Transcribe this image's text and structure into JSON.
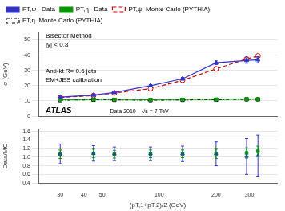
{
  "chart_data": [
    {
      "type": "line",
      "x": [
        30,
        45,
        58,
        90,
        133,
        200,
        290,
        333
      ],
      "log": "x",
      "xlim": [
        23,
        420
      ],
      "ylim": [
        0,
        55
      ],
      "yticks": [
        0,
        10,
        20,
        30,
        40,
        50
      ],
      "ylabel": "σ (GeV)",
      "grid": "y",
      "legend": "upper left",
      "tick_labels": "y",
      "annotations": [
        "Bisector Method",
        "|y| < 0.8",
        "Anti-kt R= 0.6 jets",
        "EM+JES calibration",
        "ATLAS",
        "Data 2010    √s = 7 TeV"
      ],
      "series": [
        {
          "name": "PT,ψ   Data",
          "color": "#3333cc",
          "marker": "triangle",
          "line_style": "solid",
          "values": [
            12.5,
            13.8,
            15.5,
            20.0,
            24.5,
            35.0,
            36.5,
            37.0
          ],
          "yerr": [
            0.6,
            0.6,
            0.6,
            0.7,
            0.9,
            1.2,
            1.8,
            2.0
          ]
        },
        {
          "name": "PT,η   Data",
          "color": "#009900",
          "marker": "triangle_down",
          "line_style": "solid",
          "values": [
            10.8,
            11.0,
            11.0,
            10.8,
            11.0,
            11.0,
            11.2,
            11.2
          ],
          "yerr": [
            0.3,
            0.3,
            0.3,
            0.3,
            0.3,
            0.4,
            0.4,
            0.4
          ]
        },
        {
          "name": "PT,ψ  Monte Carlo (PYTHIA)",
          "color": "#cc0000",
          "marker": "circle_open",
          "line_style": "dashed",
          "values": [
            12.2,
            13.5,
            15.2,
            18.0,
            23.5,
            31.0,
            37.5,
            39.5
          ]
        },
        {
          "name": "PT,η  Monte Carlo (PYTHIA)",
          "color": "#000000",
          "marker": "square_open",
          "line_style": "dashdot",
          "values": [
            10.5,
            10.8,
            10.7,
            10.5,
            10.7,
            10.8,
            11.0,
            11.0
          ]
        }
      ]
    },
    {
      "type": "scatter",
      "x": [
        30,
        45,
        58,
        90,
        133,
        200,
        290,
        333
      ],
      "log": "x",
      "xlim": [
        23,
        420
      ],
      "xticks": [
        30,
        40,
        50,
        100,
        200,
        300
      ],
      "ylim": [
        0.4,
        1.65
      ],
      "yticks": [
        0.4,
        0.6,
        0.8,
        {
          "value": 1,
          "label": "1.0"
        },
        1.2,
        1.4,
        1.6
      ],
      "xlabel": "(pT,1+pT,2)/2 (GeV)",
      "ylabel": "Data/MC",
      "grid": "y",
      "series": [
        {
          "color": "#3333cc",
          "marker": "triangle",
          "values": [
            1.08,
            1.09,
            1.08,
            1.08,
            1.08,
            1.08,
            1.02,
            1.04
          ],
          "yerr_low": [
            0.23,
            0.18,
            0.16,
            0.16,
            0.18,
            0.28,
            0.42,
            0.48
          ],
          "yerr_high": [
            0.23,
            0.18,
            0.16,
            0.16,
            0.18,
            0.28,
            0.42,
            0.48
          ]
        },
        {
          "color": "#009900",
          "marker": "square",
          "values": [
            1.07,
            1.09,
            1.07,
            1.08,
            1.08,
            1.08,
            1.1,
            1.14
          ],
          "yerr_low": [
            0.1,
            0.1,
            0.09,
            0.09,
            0.09,
            0.11,
            0.12,
            0.12
          ],
          "yerr_high": [
            0.1,
            0.1,
            0.09,
            0.09,
            0.09,
            0.11,
            0.12,
            0.12
          ]
        }
      ]
    }
  ]
}
